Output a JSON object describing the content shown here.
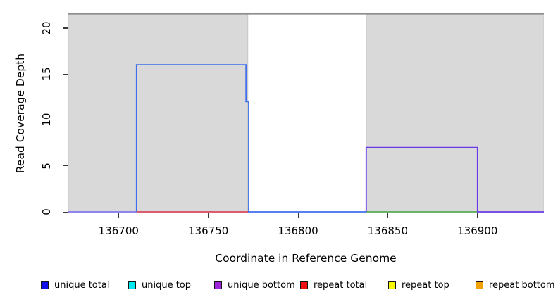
{
  "chart_data": {
    "type": "line",
    "title": "",
    "xlabel": "Coordinate in Reference Genome",
    "ylabel": "Read Coverage Depth",
    "xlim": [
      136672,
      136937
    ],
    "ylim": [
      0,
      21.6
    ],
    "x_ticks": [
      136700,
      136750,
      136800,
      136850,
      136900
    ],
    "y_ticks": [
      0,
      5,
      10,
      15,
      20
    ],
    "grid": false,
    "legend_position": "bottom",
    "shaded_regions": [
      {
        "name": "gray-block-left",
        "x0": 136672,
        "x1": 136772,
        "fill": "#d9d9d9",
        "stroke": "#c6c6c6"
      },
      {
        "name": "gray-block-right",
        "x0": 136838,
        "x1": 136937,
        "fill": "#d9d9d9",
        "stroke": "#c6c6c6"
      }
    ],
    "top_boundary_line": {
      "x0": 136672,
      "x1": 136937,
      "y": 21.6,
      "color": "#8c8c8c"
    },
    "segments": [
      {
        "name": "baseline-left-purple",
        "color": "#8276ee",
        "points": [
          [
            136672,
            0
          ],
          [
            136710,
            0
          ]
        ]
      },
      {
        "name": "repeat-total-baseline",
        "color": "#d9485e",
        "points": [
          [
            136710,
            0
          ],
          [
            136772.5,
            0
          ]
        ]
      },
      {
        "name": "unique-total-step",
        "color": "#3f6fee",
        "points": [
          [
            136710,
            0
          ],
          [
            136710,
            16
          ],
          [
            136771,
            16
          ],
          [
            136771,
            12
          ],
          [
            136772.5,
            12
          ],
          [
            136772.5,
            0
          ],
          [
            136838,
            0
          ]
        ]
      },
      {
        "name": "green-baseline-overlap",
        "color": "#57aa57",
        "points": [
          [
            136838,
            0
          ],
          [
            136900,
            0
          ]
        ]
      },
      {
        "name": "unique-bottom-step",
        "color": "#6a3be8",
        "points": [
          [
            136838,
            0
          ],
          [
            136838,
            7
          ],
          [
            136900,
            7
          ],
          [
            136900,
            0
          ],
          [
            136937,
            0
          ]
        ]
      }
    ],
    "legend": {
      "items": [
        {
          "label": "unique total",
          "color": "#0f0fe8"
        },
        {
          "label": "unique top",
          "color": "#00e8f0"
        },
        {
          "label": "unique bottom",
          "color": "#9b26d9"
        },
        {
          "label": "repeat total",
          "color": "#ee1111"
        },
        {
          "label": "repeat top",
          "color": "#f7f700"
        },
        {
          "label": "repeat bottom",
          "color": "#f2a200"
        }
      ]
    }
  }
}
